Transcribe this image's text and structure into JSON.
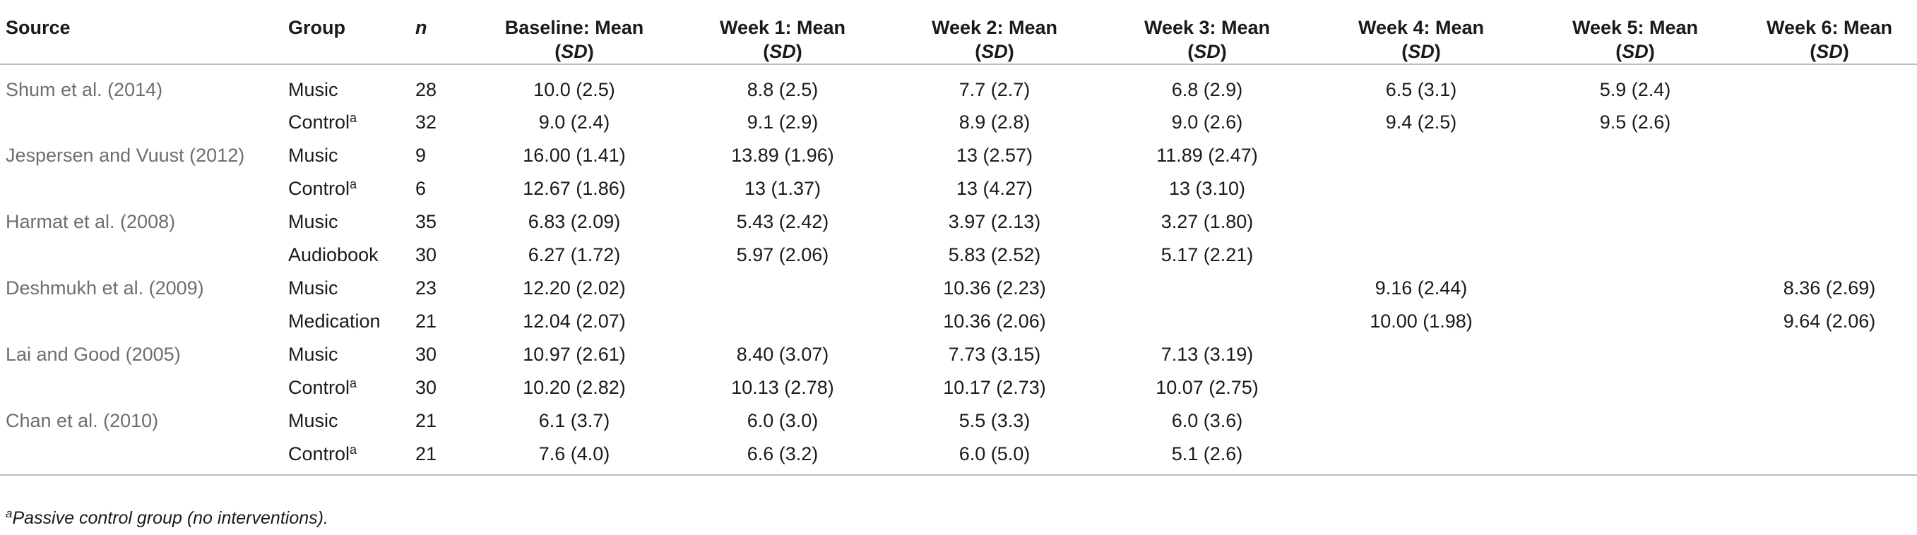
{
  "table": {
    "headers": [
      {
        "main": "Source",
        "sub": ""
      },
      {
        "main": "Group",
        "sub": ""
      },
      {
        "main": "n",
        "sub": ""
      },
      {
        "main": "Baseline: Mean",
        "sub": "SD"
      },
      {
        "main": "Week 1: Mean",
        "sub": "SD"
      },
      {
        "main": "Week 2: Mean",
        "sub": "SD"
      },
      {
        "main": "Week 3: Mean",
        "sub": "SD"
      },
      {
        "main": "Week 4: Mean",
        "sub": "SD"
      },
      {
        "main": "Week 5: Mean",
        "sub": "SD"
      },
      {
        "main": "Week 6: Mean",
        "sub": "SD"
      }
    ],
    "rows": [
      {
        "source": "Shum et al. (2014)",
        "group": "Music",
        "sup": "",
        "n": "28",
        "cells": [
          "10.0 (2.5)",
          "8.8 (2.5)",
          "7.7 (2.7)",
          "6.8 (2.9)",
          "6.5 (3.1)",
          "5.9 (2.4)",
          ""
        ]
      },
      {
        "source": "",
        "group": "Control",
        "sup": "a",
        "n": "32",
        "cells": [
          "9.0 (2.4)",
          "9.1 (2.9)",
          "8.9 (2.8)",
          "9.0 (2.6)",
          "9.4 (2.5)",
          "9.5 (2.6)",
          ""
        ]
      },
      {
        "source": "Jespersen and Vuust (2012)",
        "group": "Music",
        "sup": "",
        "n": "9",
        "cells": [
          "16.00 (1.41)",
          "13.89 (1.96)",
          "13 (2.57)",
          "11.89 (2.47)",
          "",
          "",
          ""
        ]
      },
      {
        "source": "",
        "group": "Control",
        "sup": "a",
        "n": "6",
        "cells": [
          "12.67 (1.86)",
          "13 (1.37)",
          "13 (4.27)",
          "13 (3.10)",
          "",
          "",
          ""
        ]
      },
      {
        "source": "Harmat et al. (2008)",
        "group": "Music",
        "sup": "",
        "n": "35",
        "cells": [
          "6.83 (2.09)",
          "5.43 (2.42)",
          "3.97 (2.13)",
          "3.27 (1.80)",
          "",
          "",
          ""
        ]
      },
      {
        "source": "",
        "group": "Audiobook",
        "sup": "",
        "n": "30",
        "cells": [
          "6.27 (1.72)",
          "5.97 (2.06)",
          "5.83 (2.52)",
          "5.17 (2.21)",
          "",
          "",
          ""
        ]
      },
      {
        "source": "Deshmukh et al. (2009)",
        "group": "Music",
        "sup": "",
        "n": "23",
        "cells": [
          "12.20 (2.02)",
          "",
          "10.36 (2.23)",
          "",
          "9.16 (2.44)",
          "",
          "8.36 (2.69)"
        ]
      },
      {
        "source": "",
        "group": "Medication",
        "sup": "",
        "n": "21",
        "cells": [
          "12.04 (2.07)",
          "",
          "10.36 (2.06)",
          "",
          "10.00 (1.98)",
          "",
          "9.64 (2.06)"
        ]
      },
      {
        "source": "Lai and Good (2005)",
        "group": "Music",
        "sup": "",
        "n": "30",
        "cells": [
          "10.97 (2.61)",
          "8.40 (3.07)",
          "7.73 (3.15)",
          "7.13 (3.19)",
          "",
          "",
          ""
        ]
      },
      {
        "source": "",
        "group": "Control",
        "sup": "a",
        "n": "30",
        "cells": [
          "10.20 (2.82)",
          "10.13 (2.78)",
          "10.17 (2.73)",
          "10.07 (2.75)",
          "",
          "",
          ""
        ]
      },
      {
        "source": "Chan et al. (2010)",
        "group": "Music",
        "sup": "",
        "n": "21",
        "cells": [
          "6.1 (3.7)",
          "6.0 (3.0)",
          "5.5 (3.3)",
          "6.0 (3.6)",
          "",
          "",
          ""
        ]
      },
      {
        "source": "",
        "group": "Control",
        "sup": "a",
        "n": "21",
        "cells": [
          "7.6 (4.0)",
          "6.6 (3.2)",
          "6.0 (5.0)",
          "5.1 (2.6)",
          "",
          "",
          ""
        ]
      }
    ]
  },
  "footnote": {
    "marker": "a",
    "text": "Passive control group (no interventions)."
  }
}
